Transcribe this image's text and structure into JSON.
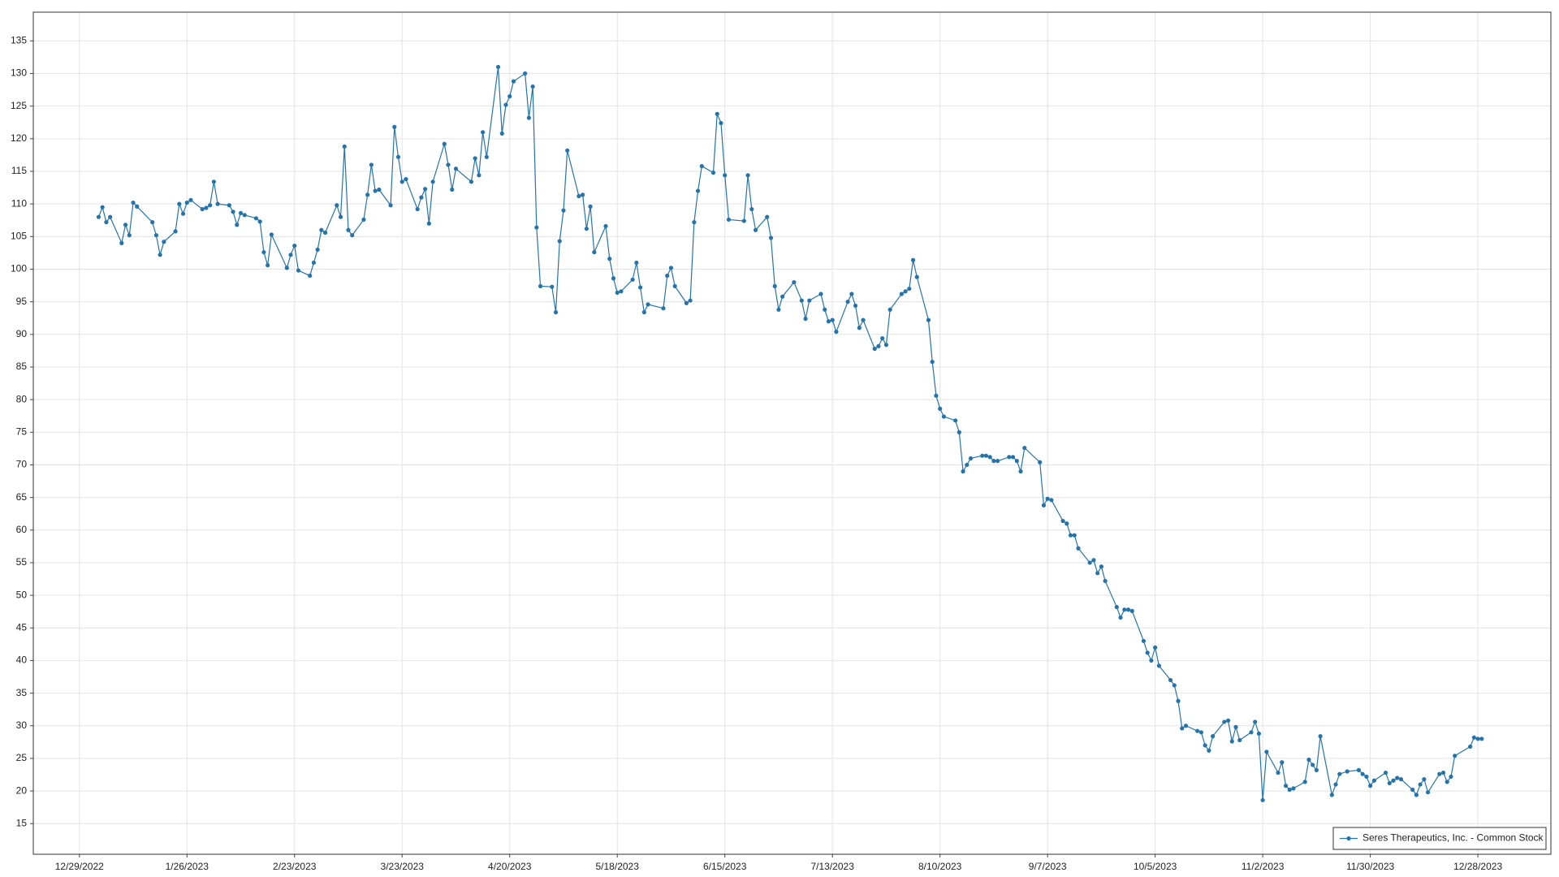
{
  "chart_data": {
    "type": "line",
    "x": [
      "1/3/2023",
      "1/4/2023",
      "1/5/2023",
      "1/6/2023",
      "1/9/2023",
      "1/10/2023",
      "1/11/2023",
      "1/12/2023",
      "1/13/2023",
      "1/17/2023",
      "1/18/2023",
      "1/19/2023",
      "1/20/2023",
      "1/23/2023",
      "1/24/2023",
      "1/25/2023",
      "1/26/2023",
      "1/27/2023",
      "1/30/2023",
      "1/31/2023",
      "2/1/2023",
      "2/2/2023",
      "2/3/2023",
      "2/6/2023",
      "2/7/2023",
      "2/8/2023",
      "2/9/2023",
      "2/10/2023",
      "2/13/2023",
      "2/14/2023",
      "2/15/2023",
      "2/16/2023",
      "2/17/2023",
      "2/21/2023",
      "2/22/2023",
      "2/23/2023",
      "2/24/2023",
      "2/27/2023",
      "2/28/2023",
      "3/1/2023",
      "3/2/2023",
      "3/3/2023",
      "3/6/2023",
      "3/7/2023",
      "3/8/2023",
      "3/9/2023",
      "3/10/2023",
      "3/13/2023",
      "3/14/2023",
      "3/15/2023",
      "3/16/2023",
      "3/17/2023",
      "3/20/2023",
      "3/21/2023",
      "3/22/2023",
      "3/23/2023",
      "3/24/2023",
      "3/27/2023",
      "3/28/2023",
      "3/29/2023",
      "3/30/2023",
      "3/31/2023",
      "4/3/2023",
      "4/4/2023",
      "4/5/2023",
      "4/6/2023",
      "4/10/2023",
      "4/11/2023",
      "4/12/2023",
      "4/13/2023",
      "4/14/2023",
      "4/17/2023",
      "4/18/2023",
      "4/19/2023",
      "4/20/2023",
      "4/21/2023",
      "4/24/2023",
      "4/25/2023",
      "4/26/2023",
      "4/27/2023",
      "4/28/2023",
      "5/1/2023",
      "5/2/2023",
      "5/3/2023",
      "5/4/2023",
      "5/5/2023",
      "5/8/2023",
      "5/9/2023",
      "5/10/2023",
      "5/11/2023",
      "5/12/2023",
      "5/15/2023",
      "5/16/2023",
      "5/17/2023",
      "5/18/2023",
      "5/19/2023",
      "5/22/2023",
      "5/23/2023",
      "5/24/2023",
      "5/25/2023",
      "5/26/2023",
      "5/30/2023",
      "5/31/2023",
      "6/1/2023",
      "6/2/2023",
      "6/5/2023",
      "6/6/2023",
      "6/7/2023",
      "6/8/2023",
      "6/9/2023",
      "6/12/2023",
      "6/13/2023",
      "6/14/2023",
      "6/15/2023",
      "6/16/2023",
      "6/20/2023",
      "6/21/2023",
      "6/22/2023",
      "6/23/2023",
      "6/26/2023",
      "6/27/2023",
      "6/28/2023",
      "6/29/2023",
      "6/30/2023",
      "7/3/2023",
      "7/5/2023",
      "7/6/2023",
      "7/7/2023",
      "7/10/2023",
      "7/11/2023",
      "7/12/2023",
      "7/13/2023",
      "7/14/2023",
      "7/17/2023",
      "7/18/2023",
      "7/19/2023",
      "7/20/2023",
      "7/21/2023",
      "7/24/2023",
      "7/25/2023",
      "7/26/2023",
      "7/27/2023",
      "7/28/2023",
      "7/31/2023",
      "8/1/2023",
      "8/2/2023",
      "8/3/2023",
      "8/4/2023",
      "8/7/2023",
      "8/8/2023",
      "8/9/2023",
      "8/10/2023",
      "8/11/2023",
      "8/14/2023",
      "8/15/2023",
      "8/16/2023",
      "8/17/2023",
      "8/18/2023",
      "8/21/2023",
      "8/22/2023",
      "8/23/2023",
      "8/24/2023",
      "8/25/2023",
      "8/28/2023",
      "8/29/2023",
      "8/30/2023",
      "8/31/2023",
      "9/1/2023",
      "9/5/2023",
      "9/6/2023",
      "9/7/2023",
      "9/8/2023",
      "9/11/2023",
      "9/12/2023",
      "9/13/2023",
      "9/14/2023",
      "9/15/2023",
      "9/18/2023",
      "9/19/2023",
      "9/20/2023",
      "9/21/2023",
      "9/22/2023",
      "9/25/2023",
      "9/26/2023",
      "9/27/2023",
      "9/28/2023",
      "9/29/2023",
      "10/2/2023",
      "10/3/2023",
      "10/4/2023",
      "10/5/2023",
      "10/6/2023",
      "10/9/2023",
      "10/10/2023",
      "10/11/2023",
      "10/12/2023",
      "10/13/2023",
      "10/16/2023",
      "10/17/2023",
      "10/18/2023",
      "10/19/2023",
      "10/20/2023",
      "10/23/2023",
      "10/24/2023",
      "10/25/2023",
      "10/26/2023",
      "10/27/2023",
      "10/30/2023",
      "10/31/2023",
      "11/1/2023",
      "11/2/2023",
      "11/3/2023",
      "11/6/2023",
      "11/7/2023",
      "11/8/2023",
      "11/9/2023",
      "11/10/2023",
      "11/13/2023",
      "11/14/2023",
      "11/15/2023",
      "11/16/2023",
      "11/17/2023",
      "11/20/2023",
      "11/21/2023",
      "11/22/2023",
      "11/24/2023",
      "11/27/2023",
      "11/28/2023",
      "11/29/2023",
      "11/30/2023",
      "12/1/2023",
      "12/4/2023",
      "12/5/2023",
      "12/6/2023",
      "12/7/2023",
      "12/8/2023",
      "12/11/2023",
      "12/12/2023",
      "12/13/2023",
      "12/14/2023",
      "12/15/2023",
      "12/18/2023",
      "12/19/2023",
      "12/20/2023",
      "12/21/2023",
      "12/22/2023",
      "12/26/2023",
      "12/27/2023",
      "12/28/2023",
      "12/29/2023"
    ],
    "series": [
      {
        "name": "Seres Therapeutics, Inc. - Common Stock",
        "color": "#2474ac",
        "values": [
          108,
          109.5,
          107.2,
          108,
          104,
          106.8,
          105.2,
          110.2,
          109.6,
          107.2,
          105.2,
          102.2,
          104.2,
          105.8,
          110,
          108.5,
          110.2,
          110.6,
          109.2,
          109.4,
          109.8,
          113.4,
          110,
          109.8,
          108.8,
          106.8,
          108.6,
          108.3,
          107.8,
          107.3,
          102.6,
          100.6,
          105.3,
          100.2,
          102.2,
          103.6,
          99.8,
          99,
          101,
          103,
          106,
          105.6,
          109.8,
          108,
          118.8,
          106,
          105.2,
          107.6,
          111.4,
          116,
          112,
          112.2,
          109.8,
          121.8,
          117.2,
          113.4,
          113.8,
          109.2,
          111,
          112.3,
          107,
          113.4,
          119.2,
          116,
          112.2,
          115.4,
          113.4,
          117,
          114.4,
          121,
          117.2,
          131,
          120.8,
          125.2,
          126.5,
          128.8,
          130,
          123.2,
          128,
          106.4,
          97.4,
          97.3,
          93.4,
          104.3,
          109,
          118.2,
          111.2,
          111.4,
          106.2,
          109.6,
          102.6,
          106.6,
          101.6,
          98.6,
          96.4,
          96.6,
          98.4,
          101,
          97.2,
          93.4,
          94.6,
          94,
          99,
          100.2,
          97.4,
          94.8,
          95.2,
          107.2,
          112,
          115.8,
          114.8,
          123.8,
          122.4,
          114.4,
          107.6,
          107.4,
          114.4,
          109.2,
          106,
          108,
          104.8,
          97.4,
          93.8,
          95.8,
          98,
          95.2,
          92.4,
          95.2,
          96.2,
          93.8,
          92,
          92.2,
          90.4,
          95,
          96.2,
          94.4,
          91,
          92.2,
          87.8,
          88.2,
          89.4,
          88.4,
          93.8,
          96.2,
          96.6,
          97,
          101.4,
          98.8,
          92.2,
          85.8,
          80.6,
          78.6,
          77.4,
          76.8,
          75,
          69,
          70,
          71,
          71.4,
          71.4,
          71.2,
          70.6,
          70.6,
          71.2,
          71.2,
          70.6,
          69,
          72.6,
          70.4,
          63.8,
          64.8,
          64.6,
          61.4,
          61,
          59.2,
          59.2,
          57.2,
          55,
          55.4,
          53.4,
          54.4,
          52.2,
          48.2,
          46.6,
          47.8,
          47.8,
          47.6,
          43,
          41.2,
          40,
          42,
          39.2,
          37,
          36.2,
          33.8,
          29.6,
          30,
          29.2,
          29,
          27,
          26.2,
          28.4,
          30.6,
          30.8,
          27.6,
          29.8,
          27.8,
          29,
          30.6,
          28.8,
          18.6,
          26,
          22.8,
          24.4,
          20.8,
          20.2,
          20.4,
          21.4,
          24.8,
          24,
          23.2,
          28.4,
          19.4,
          21,
          22.6,
          23,
          23.2,
          22.6,
          22.2,
          20.8,
          21.6,
          22.8,
          21.2,
          21.6,
          22,
          21.8,
          20.2,
          19.4,
          21,
          21.8,
          19.8,
          22.6,
          22.8,
          21.4,
          22.2,
          25.4,
          26.8,
          28.2,
          28,
          28
        ]
      }
    ],
    "xlim": [
      "12/17/2022",
      "1/16/2024"
    ],
    "xticks": [
      "12/29/2022",
      "1/26/2023",
      "2/23/2023",
      "3/23/2023",
      "4/20/2023",
      "5/18/2023",
      "6/15/2023",
      "7/13/2023",
      "8/10/2023",
      "9/7/2023",
      "10/5/2023",
      "11/2/2023",
      "11/30/2023",
      "12/28/2023"
    ],
    "ylim": [
      10.3,
      139.4
    ],
    "yticks": [
      15,
      20,
      25,
      30,
      35,
      40,
      45,
      50,
      55,
      60,
      65,
      70,
      75,
      80,
      85,
      90,
      95,
      100,
      105,
      110,
      115,
      120,
      125,
      130,
      135
    ],
    "grid": true,
    "legend": "lower right"
  }
}
